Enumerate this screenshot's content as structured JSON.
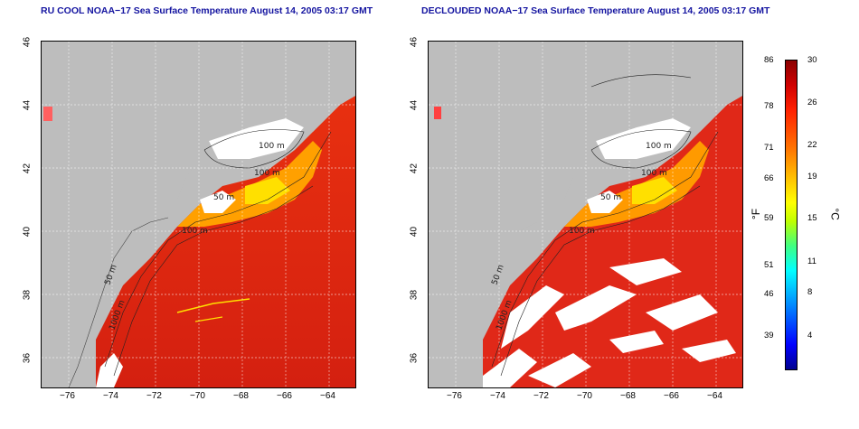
{
  "panels": [
    {
      "title": "RU COOL NOAA−17 Sea Surface Temperature August 14, 2005 03:17 GMT"
    },
    {
      "title": "DECLOUDED NOAA−17 Sea Surface Temperature August 14, 2005 03:17 GMT"
    }
  ],
  "axes": {
    "lon_ticks": [
      "−76",
      "−74",
      "−72",
      "−70",
      "−68",
      "−66",
      "−64"
    ],
    "lat_ticks": [
      "46",
      "44",
      "42",
      "40",
      "38",
      "36"
    ]
  },
  "contour_labels": [
    "100 m",
    "100 m",
    "50 m",
    "100 m",
    "50 m",
    "1000 m"
  ],
  "colorbar": {
    "fahrenheit_label": "°F",
    "celsius_label": "°C",
    "fahrenheit_ticks": [
      "86",
      "78",
      "71",
      "66",
      "59",
      "51",
      "46",
      "39"
    ],
    "celsius_ticks": [
      "30",
      "26",
      "22",
      "19",
      "15",
      "11",
      "8",
      "4"
    ]
  },
  "colors": {
    "land": "#bdbdbd",
    "cloud": "#ffffff",
    "title": "#1414a0"
  }
}
